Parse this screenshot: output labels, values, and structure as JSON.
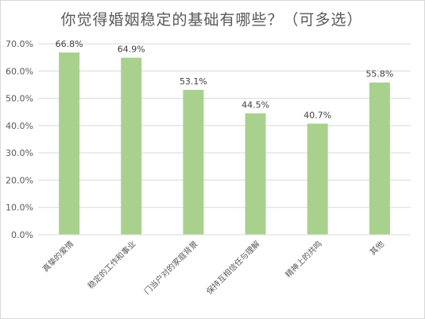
{
  "chart_data": {
    "type": "bar",
    "title": "你觉得婚姻稳定的基础有哪些？（可多选）",
    "categories": [
      "真挚的爱情",
      "稳定的工作和事业",
      "门当户对的家庭背景",
      "保持互相信任与理解",
      "精神上的共鸣",
      "其他"
    ],
    "values": [
      66.8,
      64.9,
      53.1,
      44.5,
      40.7,
      55.8
    ],
    "data_labels": [
      "66.8%",
      "64.9%",
      "53.1%",
      "44.5%",
      "40.7%",
      "55.8%"
    ],
    "ylim": [
      0,
      70
    ],
    "yticks": [
      0,
      10,
      20,
      30,
      40,
      50,
      60,
      70
    ],
    "ytick_labels": [
      "0.0%",
      "10.0%",
      "20.0%",
      "30.0%",
      "40.0%",
      "50.0%",
      "60.0%",
      "70.0%"
    ],
    "xlabel": "",
    "ylabel": "",
    "grid": true,
    "bar_color": "#a9d18e",
    "grid_color": "#d9d9d9"
  }
}
